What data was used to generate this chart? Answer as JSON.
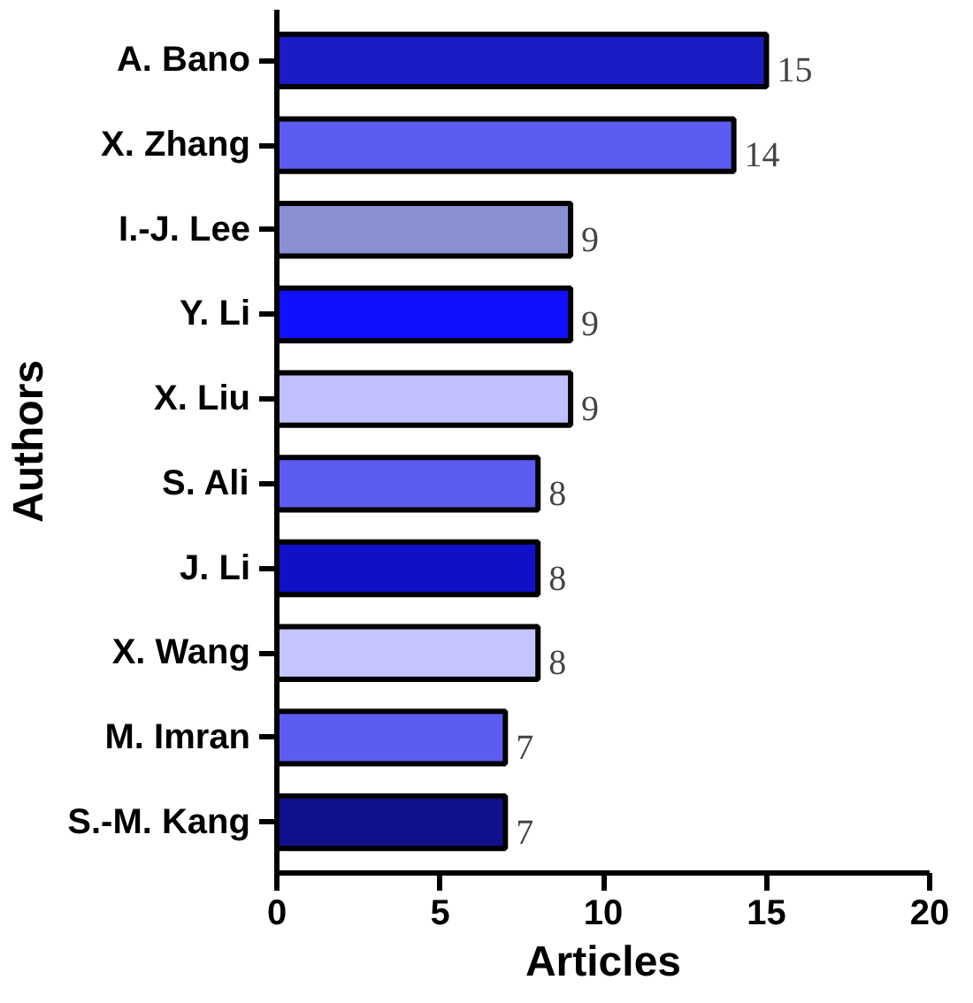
{
  "chart_data": {
    "type": "bar",
    "orientation": "horizontal",
    "xlabel": "Articles",
    "ylabel": "Authors",
    "categories": [
      "A. Bano",
      "X. Zhang",
      "I.-J. Lee",
      "Y. Li",
      "X. Liu",
      "S. Ali",
      "J. Li",
      "X. Wang",
      "M. Imran",
      "S.-M. Kang"
    ],
    "values": [
      15,
      14,
      9,
      9,
      9,
      8,
      8,
      8,
      7,
      7
    ],
    "colors": [
      "#1c1cc4",
      "#5c5cf2",
      "#8a8fd2",
      "#1010ff",
      "#c0c0ff",
      "#5c5cf2",
      "#1010c8",
      "#c4c4ff",
      "#5c5cf2",
      "#10108c"
    ],
    "xlim": [
      0,
      20
    ],
    "xticks": [
      0,
      5,
      10,
      15,
      20
    ],
    "grid": false,
    "data_labels": true
  }
}
